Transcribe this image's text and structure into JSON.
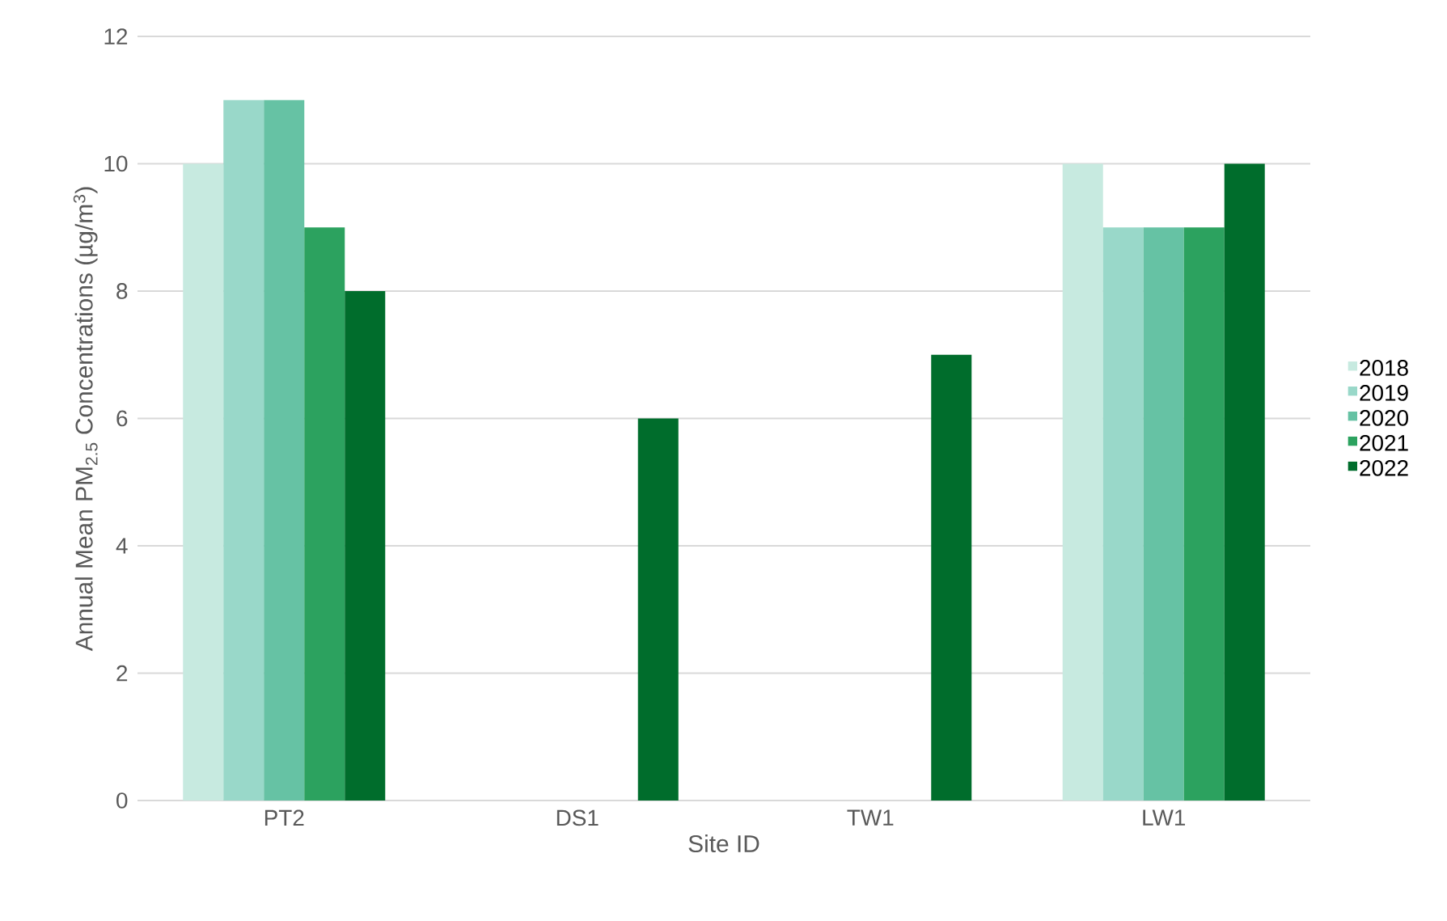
{
  "chart_data": {
    "type": "bar",
    "xlabel": "Site ID",
    "ylabel": "Annual Mean PM$_{2.5}$ Concentrations (µg/m$^{3}$)",
    "categories": [
      "PT2",
      "DS1",
      "TW1",
      "LW1"
    ],
    "series": [
      {
        "name": "2018",
        "color": "#c7eae0",
        "values": [
          10,
          null,
          null,
          10
        ]
      },
      {
        "name": "2019",
        "color": "#99d8c9",
        "values": [
          11,
          null,
          null,
          9
        ]
      },
      {
        "name": "2020",
        "color": "#66c2a4",
        "values": [
          11,
          null,
          null,
          9
        ]
      },
      {
        "name": "2021",
        "color": "#2ca25f",
        "values": [
          9,
          null,
          null,
          9
        ]
      },
      {
        "name": "2022",
        "color": "#006d2c",
        "values": [
          8,
          6,
          7,
          10
        ]
      }
    ],
    "ylim": [
      0,
      12
    ],
    "yticks": [
      0,
      2,
      4,
      6,
      8,
      10,
      12
    ],
    "grid": "y",
    "legend": "right"
  }
}
